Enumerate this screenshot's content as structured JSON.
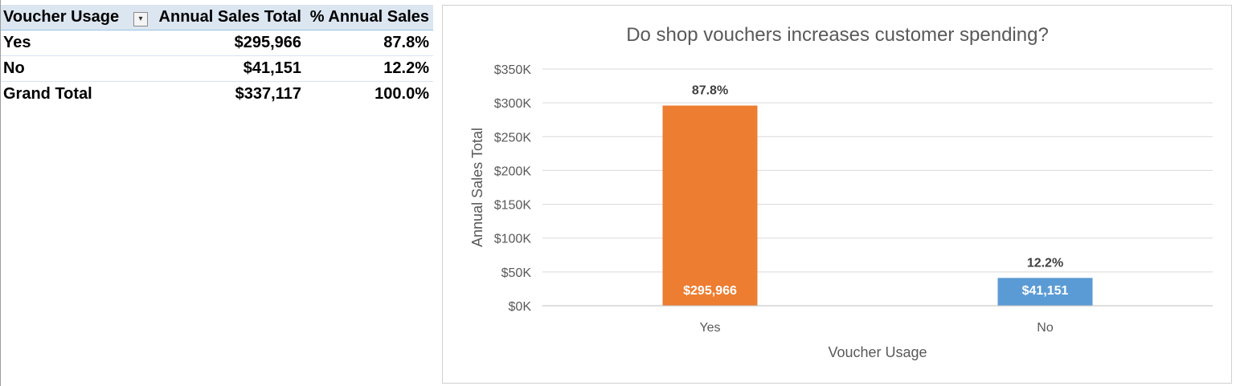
{
  "pivot": {
    "headers": [
      "Voucher Usage",
      "Annual Sales Total",
      "% Annual Sales"
    ],
    "rows": [
      {
        "label": "Yes",
        "total": "$295,966",
        "pct": "87.8%"
      },
      {
        "label": "No",
        "total": "$41,151",
        "pct": "12.2%"
      }
    ],
    "grand_total": {
      "label": "Grand Total",
      "total": "$337,117",
      "pct": "100.0%"
    },
    "filter_icon": "filter-dropdown-icon"
  },
  "chart_data": {
    "type": "bar",
    "title": "Do shop vouchers increases customer spending?",
    "xlabel": "Voucher Usage",
    "ylabel": "Annual Sales  Total",
    "categories": [
      "Yes",
      "No"
    ],
    "values": [
      295966,
      41151
    ],
    "value_labels": [
      "$295,966",
      "$41,151"
    ],
    "pct_labels": [
      "87.8%",
      "12.2%"
    ],
    "colors": [
      "#ed7d31",
      "#5b9bd5"
    ],
    "ylim": [
      0,
      350000
    ],
    "yticks": [
      0,
      50000,
      100000,
      150000,
      200000,
      250000,
      300000,
      350000
    ],
    "ytick_labels": [
      "$0K",
      "$50K",
      "$100K",
      "$150K",
      "$200K",
      "$250K",
      "$300K",
      "$350K"
    ],
    "grid": true,
    "legend": "none"
  }
}
